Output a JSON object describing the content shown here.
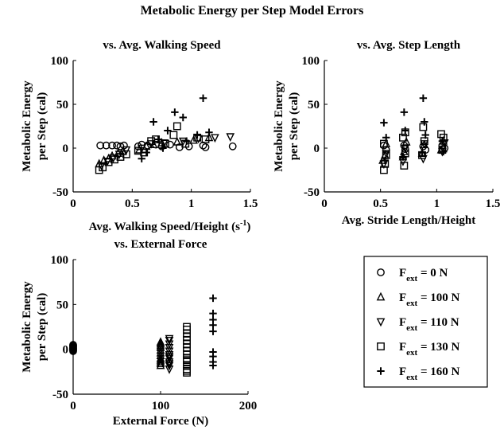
{
  "figure_title": "Metabolic Energy per Step Model Errors",
  "chart_data": [
    {
      "type": "scatter",
      "title": "vs. Avg. Walking Speed",
      "xlabel": "Avg. Walking Speed/Height (s",
      "xlabel_sup": "-1",
      "xlabel_end": ")",
      "ylabel": [
        "Metabolic Energy",
        "per Step (cal)"
      ],
      "xlim": [
        0,
        1.5
      ],
      "ylim": [
        -50,
        100
      ],
      "xticks": [
        0,
        0.5,
        1,
        1.5
      ],
      "xtick_labels": [
        "0",
        "0.5",
        "1",
        "1.5"
      ],
      "yticks": [
        -50,
        0,
        50,
        100
      ],
      "ytick_labels": [
        "-50",
        "0",
        "50",
        "100"
      ],
      "grid": false,
      "series": [
        {
          "name": "F_ext = 0 N",
          "marker": "circle",
          "points": [
            [
              0.23,
              3
            ],
            [
              0.28,
              3
            ],
            [
              0.33,
              3
            ],
            [
              0.37,
              3
            ],
            [
              0.4,
              2
            ],
            [
              0.43,
              3
            ],
            [
              0.55,
              2
            ],
            [
              0.58,
              4
            ],
            [
              0.63,
              3
            ],
            [
              0.7,
              4
            ],
            [
              0.75,
              2
            ],
            [
              0.82,
              4
            ],
            [
              0.9,
              1
            ],
            [
              0.98,
              2
            ],
            [
              1.1,
              3
            ],
            [
              1.12,
              1
            ],
            [
              1.35,
              2
            ]
          ]
        },
        {
          "name": "F_ext = 100 N",
          "marker": "triangle-up",
          "points": [
            [
              0.22,
              -18
            ],
            [
              0.26,
              -14
            ],
            [
              0.3,
              -12
            ],
            [
              0.33,
              -9
            ],
            [
              0.38,
              -6
            ],
            [
              0.42,
              -4
            ],
            [
              0.56,
              -2
            ],
            [
              0.62,
              2
            ],
            [
              0.68,
              4
            ],
            [
              0.75,
              6
            ],
            [
              0.88,
              7
            ],
            [
              1.02,
              9
            ],
            [
              1.15,
              12
            ]
          ]
        },
        {
          "name": "F_ext = 110 N",
          "marker": "triangle-down",
          "points": [
            [
              0.24,
              -20
            ],
            [
              0.29,
              -15
            ],
            [
              0.34,
              -11
            ],
            [
              0.39,
              -7
            ],
            [
              0.45,
              -2
            ],
            [
              0.58,
              0
            ],
            [
              0.66,
              5
            ],
            [
              0.77,
              6
            ],
            [
              0.93,
              8
            ],
            [
              1.06,
              11
            ],
            [
              1.2,
              12
            ],
            [
              1.33,
              13
            ]
          ]
        },
        {
          "name": "F_ext = 130 N",
          "marker": "square",
          "points": [
            [
              0.22,
              -25
            ],
            [
              0.25,
              -22
            ],
            [
              0.3,
              -16
            ],
            [
              0.35,
              -13
            ],
            [
              0.4,
              -10
            ],
            [
              0.45,
              -7
            ],
            [
              0.55,
              -3
            ],
            [
              0.6,
              -5
            ],
            [
              0.66,
              8
            ],
            [
              0.7,
              10
            ],
            [
              0.78,
              5
            ],
            [
              0.85,
              15
            ],
            [
              0.88,
              25
            ],
            [
              0.95,
              5
            ],
            [
              1.05,
              12
            ],
            [
              1.12,
              10
            ]
          ]
        },
        {
          "name": "F_ext = 160 N",
          "marker": "plus",
          "points": [
            [
              0.58,
              -12
            ],
            [
              0.62,
              -5
            ],
            [
              0.68,
              30
            ],
            [
              0.72,
              10
            ],
            [
              0.76,
              0
            ],
            [
              0.8,
              20
            ],
            [
              0.86,
              41
            ],
            [
              0.93,
              35
            ],
            [
              0.96,
              8
            ],
            [
              1.05,
              15
            ],
            [
              1.1,
              57
            ],
            [
              1.15,
              18
            ]
          ]
        }
      ]
    },
    {
      "type": "scatter",
      "title": "vs. Avg. Step Length",
      "xlabel": "Avg. Stride Length/Height",
      "ylabel": [
        "Metabolic Energy",
        "per Step (cal)"
      ],
      "xlim": [
        0,
        1.5
      ],
      "ylim": [
        -50,
        100
      ],
      "xticks": [
        0,
        0.5,
        1,
        1.5
      ],
      "xtick_labels": [
        "0",
        "0.5",
        "1",
        "1.5"
      ],
      "yticks": [
        -50,
        0,
        50,
        100
      ],
      "ytick_labels": [
        "-50",
        "0",
        "50",
        "100"
      ],
      "grid": false,
      "series": [
        {
          "name": "F_ext = 0 N",
          "marker": "circle",
          "points": [
            [
              0.53,
              3
            ],
            [
              0.55,
              -2
            ],
            [
              0.71,
              3
            ],
            [
              0.72,
              -1
            ],
            [
              0.88,
              2
            ],
            [
              0.9,
              -2
            ],
            [
              1.05,
              3
            ],
            [
              1.07,
              0
            ]
          ]
        },
        {
          "name": "F_ext = 100 N",
          "marker": "triangle-up",
          "points": [
            [
              0.52,
              -14
            ],
            [
              0.54,
              -8
            ],
            [
              0.55,
              5
            ],
            [
              0.7,
              -10
            ],
            [
              0.71,
              -4
            ],
            [
              0.73,
              7
            ],
            [
              0.87,
              -6
            ],
            [
              0.89,
              4
            ],
            [
              1.04,
              -2
            ],
            [
              1.06,
              8
            ]
          ]
        },
        {
          "name": "F_ext = 110 N",
          "marker": "triangle-down",
          "points": [
            [
              0.53,
              -18
            ],
            [
              0.55,
              -6
            ],
            [
              0.7,
              -15
            ],
            [
              0.72,
              0
            ],
            [
              0.88,
              -12
            ],
            [
              0.89,
              5
            ],
            [
              1.05,
              -4
            ],
            [
              1.07,
              6
            ]
          ]
        },
        {
          "name": "F_ext = 130 N",
          "marker": "square",
          "points": [
            [
              0.53,
              -25
            ],
            [
              0.54,
              -18
            ],
            [
              0.55,
              -8
            ],
            [
              0.53,
              5
            ],
            [
              0.71,
              -20
            ],
            [
              0.72,
              -6
            ],
            [
              0.7,
              12
            ],
            [
              0.72,
              18
            ],
            [
              0.87,
              -8
            ],
            [
              0.89,
              8
            ],
            [
              0.88,
              24
            ],
            [
              1.05,
              -2
            ],
            [
              1.06,
              12
            ],
            [
              1.04,
              16
            ]
          ]
        },
        {
          "name": "F_ext = 160 N",
          "marker": "plus",
          "points": [
            [
              0.53,
              29
            ],
            [
              0.55,
              12
            ],
            [
              0.54,
              -14
            ],
            [
              0.71,
              41
            ],
            [
              0.72,
              20
            ],
            [
              0.7,
              -10
            ],
            [
              0.88,
              57
            ],
            [
              0.89,
              30
            ],
            [
              0.9,
              15
            ],
            [
              0.87,
              -5
            ],
            [
              1.05,
              8
            ],
            [
              1.06,
              -4
            ]
          ]
        }
      ]
    },
    {
      "type": "scatter",
      "title": "vs. External Force",
      "xlabel": "External Force (N)",
      "ylabel": [
        "Metabolic Energy",
        "per Step (cal)"
      ],
      "xlim": [
        0,
        200
      ],
      "ylim": [
        -50,
        100
      ],
      "xticks": [
        0,
        100,
        200
      ],
      "xtick_labels": [
        "0",
        "100",
        "200"
      ],
      "yticks": [
        -50,
        0,
        50,
        100
      ],
      "ytick_labels": [
        "-50",
        "0",
        "50",
        "100"
      ],
      "grid": false,
      "series": [
        {
          "name": "F_ext = 0 N",
          "marker": "circle",
          "points": [
            [
              0,
              5
            ],
            [
              0,
              3
            ],
            [
              0,
              1
            ],
            [
              0,
              -1
            ],
            [
              0,
              2
            ],
            [
              0,
              4
            ],
            [
              0,
              0
            ],
            [
              0,
              -2
            ]
          ]
        },
        {
          "name": "F_ext = 100 N",
          "marker": "triangle-up",
          "points": [
            [
              100,
              -18
            ],
            [
              100,
              -14
            ],
            [
              100,
              -10
            ],
            [
              100,
              -7
            ],
            [
              100,
              -4
            ],
            [
              100,
              -1
            ],
            [
              100,
              2
            ],
            [
              100,
              4
            ],
            [
              100,
              6
            ],
            [
              100,
              8
            ],
            [
              100,
              -12
            ],
            [
              100,
              -16
            ]
          ]
        },
        {
          "name": "F_ext = 110 N",
          "marker": "triangle-down",
          "points": [
            [
              110,
              -22
            ],
            [
              110,
              -18
            ],
            [
              110,
              -14
            ],
            [
              110,
              -10
            ],
            [
              110,
              -6
            ],
            [
              110,
              -2
            ],
            [
              110,
              2
            ],
            [
              110,
              6
            ],
            [
              110,
              10
            ],
            [
              110,
              12
            ],
            [
              110,
              -16
            ],
            [
              110,
              -8
            ]
          ]
        },
        {
          "name": "F_ext = 130 N",
          "marker": "square",
          "points": [
            [
              130,
              -26
            ],
            [
              130,
              -22
            ],
            [
              130,
              -18
            ],
            [
              130,
              -14
            ],
            [
              130,
              -10
            ],
            [
              130,
              -6
            ],
            [
              130,
              -2
            ],
            [
              130,
              2
            ],
            [
              130,
              6
            ],
            [
              130,
              10
            ],
            [
              130,
              14
            ],
            [
              130,
              18
            ],
            [
              130,
              22
            ],
            [
              130,
              25
            ],
            [
              130,
              -24
            ],
            [
              130,
              -12
            ]
          ]
        },
        {
          "name": "F_ext = 160 N",
          "marker": "plus",
          "points": [
            [
              160,
              57
            ],
            [
              160,
              40
            ],
            [
              160,
              33
            ],
            [
              160,
              27
            ],
            [
              160,
              20
            ],
            [
              160,
              -3
            ],
            [
              160,
              -8
            ],
            [
              160,
              -14
            ],
            [
              160,
              -18
            ]
          ]
        }
      ]
    }
  ],
  "legend": {
    "placement": "lower-right",
    "entries": [
      {
        "marker": "circle",
        "prefix": "F",
        "sub": "ext",
        "suffix": " = 0 N"
      },
      {
        "marker": "triangle-up",
        "prefix": "F",
        "sub": "ext",
        "suffix": " = 100 N"
      },
      {
        "marker": "triangle-down",
        "prefix": "F",
        "sub": "ext",
        "suffix": " = 110 N"
      },
      {
        "marker": "square",
        "prefix": "F",
        "sub": "ext",
        "suffix": " = 130 N"
      },
      {
        "marker": "plus",
        "prefix": "F",
        "sub": "ext",
        "suffix": " = 160 N"
      }
    ]
  }
}
